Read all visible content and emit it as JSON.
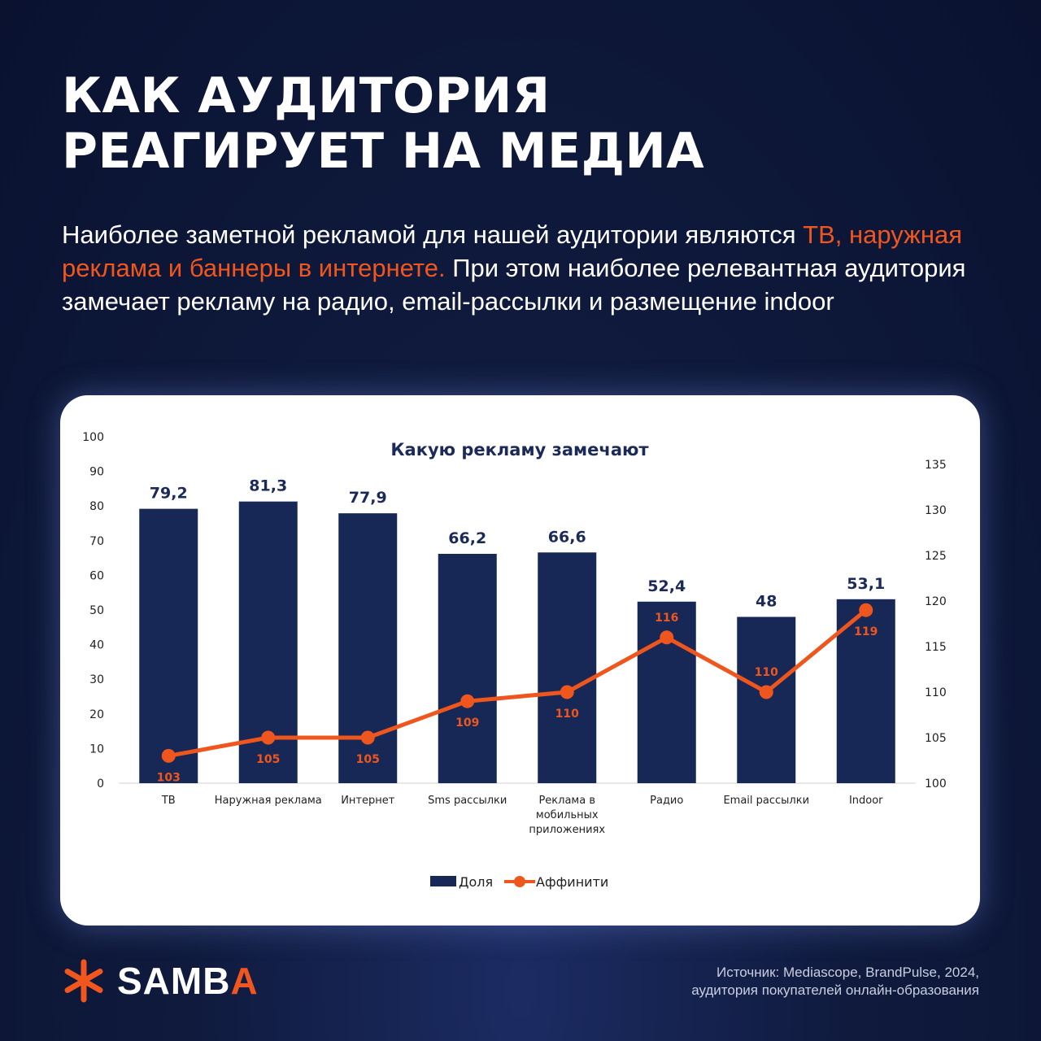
{
  "headline": {
    "line1": "КАК АУДИТОРИЯ",
    "line2": "РЕАГИРУЕТ НА МЕДИА"
  },
  "subtitle": {
    "part1": "Наиболее заметной рекламой для нашей аудитории являются ",
    "highlight": "ТВ, наружная реклама и баннеры в интернете.",
    "part2": " При этом наиболее релевантная аудитория замечает рекламу на радио, email-рассылки и размещение indoor"
  },
  "colors": {
    "bar": "#172856",
    "line": "#ef561d",
    "accent": "#f0561d"
  },
  "chart_data": {
    "type": "bar",
    "title": "Какую рекламу замечают",
    "categories": [
      "ТВ",
      "Наружная реклама",
      "Интернет",
      "Sms рассылки",
      "Реклама в мобильных приложениях",
      "Радио",
      "Email рассылки",
      "Indoor"
    ],
    "category_lines": [
      [
        "ТВ"
      ],
      [
        "Наружная реклама"
      ],
      [
        "Интернет"
      ],
      [
        "Sms рассылки"
      ],
      [
        "Реклама в",
        "мобильных",
        "приложениях"
      ],
      [
        "Радио"
      ],
      [
        "Email рассылки"
      ],
      [
        "Indoor"
      ]
    ],
    "series": [
      {
        "name": "Доля",
        "type": "bar",
        "axis": "left",
        "values": [
          79.2,
          81.3,
          77.9,
          66.2,
          66.6,
          52.4,
          48,
          53.1
        ],
        "labels": [
          "79,2",
          "81,3",
          "77,9",
          "66,2",
          "66,6",
          "52,4",
          "48",
          "53,1"
        ]
      },
      {
        "name": "Аффинити",
        "type": "line",
        "axis": "right",
        "values": [
          103,
          105,
          105,
          109,
          110,
          116,
          110,
          119
        ],
        "labels": [
          "103",
          "105",
          "105",
          "109",
          "110",
          "116",
          "110",
          "119"
        ]
      }
    ],
    "y_left": {
      "min": 0,
      "max": 100,
      "ticks": [
        "0",
        "10",
        "20",
        "30",
        "40",
        "50",
        "60",
        "70",
        "80",
        "90",
        "100"
      ]
    },
    "y_right": {
      "min": 100,
      "max": 135,
      "ticks": [
        "100",
        "105",
        "110",
        "115",
        "120",
        "125",
        "130",
        "135"
      ]
    },
    "legend_position": "bottom",
    "grid": false
  },
  "logo": {
    "word_main": "SAMB",
    "word_accent": "A"
  },
  "source": {
    "line1": "Источник: Mediascope, BrandPulse, 2024,",
    "line2": "аудитория покупателей онлайн-образования"
  }
}
